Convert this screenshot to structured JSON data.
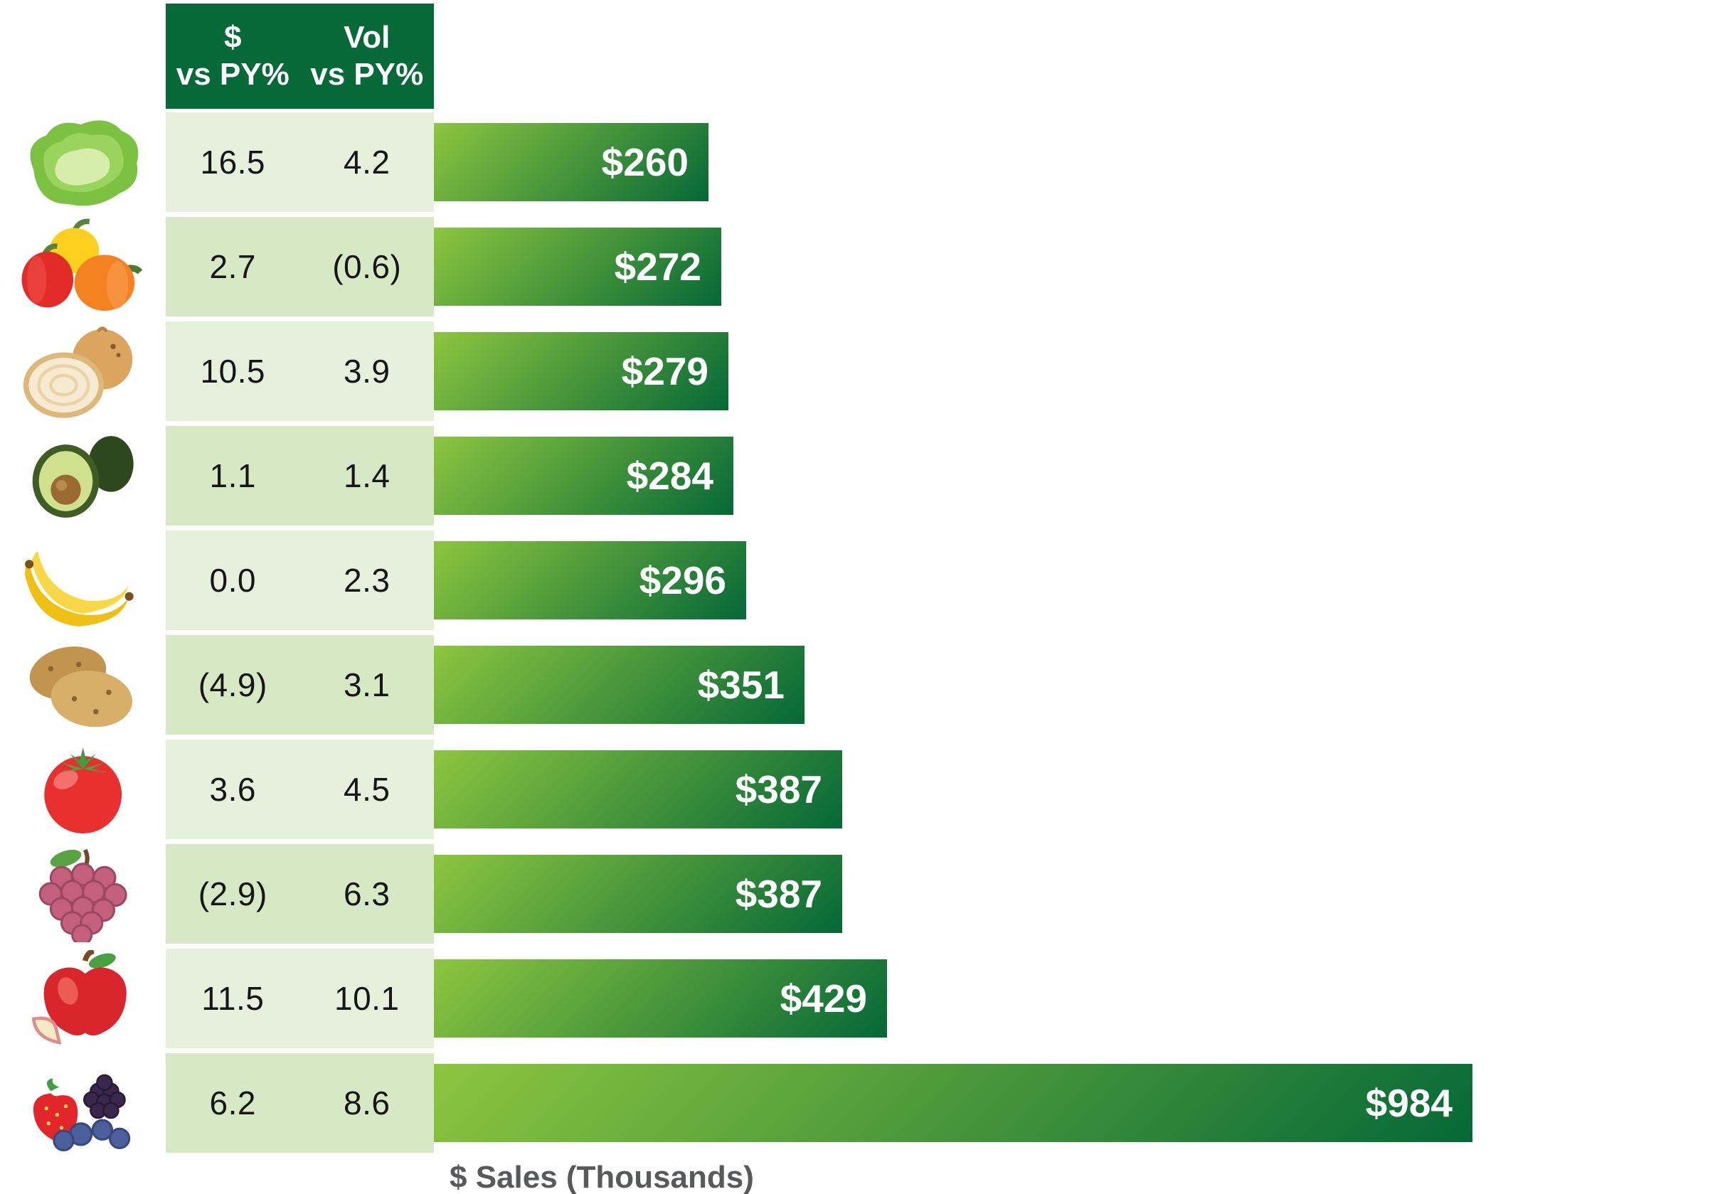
{
  "table": {
    "headers": [
      "$\nvs PY%",
      "Vol\nvs PY%"
    ]
  },
  "axis": {
    "xlabel": "$ Sales (Thousands)"
  },
  "colors": {
    "header_bg": "#056a38",
    "row_light": "#e7f0dd",
    "row_dark": "#d6e8c4",
    "bar_gradient_start": "#8dc63f",
    "bar_gradient_end": "#056837",
    "bar_label_text": "#ffffff",
    "table_text": "#161616",
    "axis_label_text": "#58595b"
  },
  "rows": [
    {
      "icon": "lettuce",
      "dollar_vs_py": "16.5",
      "vol_vs_py": "4.2",
      "sales": 260,
      "sales_label": "$260"
    },
    {
      "icon": "bell-peppers",
      "dollar_vs_py": "2.7",
      "vol_vs_py": "(0.6)",
      "sales": 272,
      "sales_label": "$272"
    },
    {
      "icon": "onion",
      "dollar_vs_py": "10.5",
      "vol_vs_py": "3.9",
      "sales": 279,
      "sales_label": "$279"
    },
    {
      "icon": "avocado",
      "dollar_vs_py": "1.1",
      "vol_vs_py": "1.4",
      "sales": 284,
      "sales_label": "$284"
    },
    {
      "icon": "bananas",
      "dollar_vs_py": "0.0",
      "vol_vs_py": "2.3",
      "sales": 296,
      "sales_label": "$296"
    },
    {
      "icon": "potatoes",
      "dollar_vs_py": "(4.9)",
      "vol_vs_py": "3.1",
      "sales": 351,
      "sales_label": "$351"
    },
    {
      "icon": "tomato",
      "dollar_vs_py": "3.6",
      "vol_vs_py": "4.5",
      "sales": 387,
      "sales_label": "$387"
    },
    {
      "icon": "grapes",
      "dollar_vs_py": "(2.9)",
      "vol_vs_py": "6.3",
      "sales": 387,
      "sales_label": "$387"
    },
    {
      "icon": "apple",
      "dollar_vs_py": "11.5",
      "vol_vs_py": "10.1",
      "sales": 429,
      "sales_label": "$429"
    },
    {
      "icon": "berries",
      "dollar_vs_py": "6.2",
      "vol_vs_py": "8.6",
      "sales": 984,
      "sales_label": "$984"
    }
  ],
  "chart_data": {
    "type": "bar",
    "orientation": "horizontal",
    "categories": [
      "Lettuce",
      "Bell Peppers",
      "Onions",
      "Avocados",
      "Bananas",
      "Potatoes",
      "Tomatoes",
      "Grapes",
      "Apples",
      "Berries"
    ],
    "series": [
      {
        "name": "$ Sales (Thousands)",
        "values": [
          260,
          272,
          279,
          284,
          296,
          351,
          387,
          387,
          429,
          984
        ]
      },
      {
        "name": "$ vs PY%",
        "values": [
          16.5,
          2.7,
          10.5,
          1.1,
          0.0,
          -4.9,
          3.6,
          -2.9,
          11.5,
          6.2
        ]
      },
      {
        "name": "Vol vs PY%",
        "values": [
          4.2,
          -0.6,
          3.9,
          1.4,
          2.3,
          3.1,
          4.5,
          6.3,
          10.1,
          8.6
        ]
      }
    ],
    "xlabel": "$ Sales (Thousands)",
    "xlim": [
      0,
      1000
    ],
    "data_labels": true,
    "grid": false,
    "legend": false,
    "negative_values_shown_in_parentheses": true
  }
}
